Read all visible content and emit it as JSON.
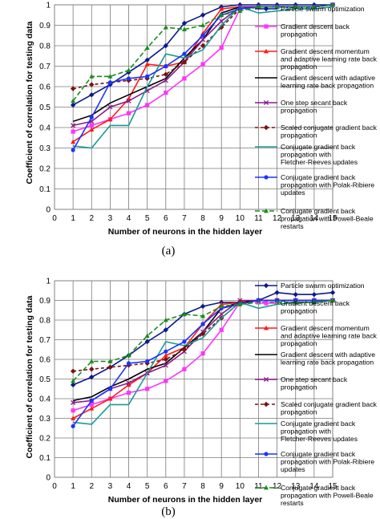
{
  "figure": {
    "panels": [
      {
        "label": "(a)",
        "xlabel": "Number of neurons in the hidden layer",
        "ylabel": "Coefficient of correlation for testing data"
      },
      {
        "label": "(b)",
        "xlabel": "Number of neurons in the hidden layer",
        "ylabel": "Coefficient of correlation for testing data"
      }
    ]
  },
  "chart_data": [
    {
      "type": "line",
      "title": "",
      "panel_label": "(a)",
      "xlabel": "Number of neurons in the hidden layer",
      "ylabel": "Coefficient of correlation for testing data",
      "xlim": [
        0,
        15
      ],
      "ylim": [
        0,
        1
      ],
      "xticks": [
        "0",
        "1",
        "2",
        "3",
        "4",
        "5",
        "6",
        "7",
        "8",
        "9",
        "10",
        "11",
        "12",
        "13",
        "14",
        "15"
      ],
      "yticks": [
        "0",
        "0.1",
        "0.2",
        "0.3",
        "0.4",
        "0.5",
        "0.6",
        "0.7",
        "0.8",
        "0.9",
        "1"
      ],
      "grid": true,
      "legend_position": "right",
      "x": [
        1,
        2,
        3,
        4,
        5,
        6,
        7,
        8,
        9,
        10,
        11,
        12,
        13,
        14,
        15
      ],
      "series": [
        {
          "name": "Particle swarm optimization",
          "color": "#0a1a8c",
          "dash": "",
          "marker": "diamond",
          "values": [
            0.51,
            0.56,
            0.61,
            0.67,
            0.73,
            0.8,
            0.91,
            0.95,
            0.99,
            1.0,
            1.0,
            1.0,
            1.0,
            1.0,
            1.0
          ]
        },
        {
          "name": "Gradient descent back propagation",
          "color": "#ff33ff",
          "dash": "",
          "marker": "square",
          "values": [
            0.38,
            0.41,
            0.44,
            0.47,
            0.51,
            0.57,
            0.64,
            0.71,
            0.79,
            0.98,
            0.99,
            0.99,
            0.99,
            0.99,
            1.0
          ]
        },
        {
          "name": "Gradient descent momentum and adaptive learning rate back propagation",
          "color": "#ff1a1a",
          "dash": "",
          "marker": "triangle",
          "values": [
            0.33,
            0.39,
            0.44,
            0.54,
            0.71,
            0.7,
            0.72,
            0.86,
            0.98,
            0.99,
            0.99,
            0.99,
            0.99,
            0.99,
            1.0
          ]
        },
        {
          "name": "Gradient descent with adaptive learning rate back propagation",
          "color": "#000000",
          "dash": "",
          "marker": "none",
          "values": [
            0.43,
            0.46,
            0.52,
            0.56,
            0.6,
            0.64,
            0.74,
            0.83,
            0.96,
            0.99,
            0.99,
            0.99,
            0.99,
            0.99,
            1.0
          ]
        },
        {
          "name": "One step secant back propagation",
          "color": "#8b1a8b",
          "dash": "",
          "marker": "cross",
          "values": [
            0.41,
            0.43,
            0.5,
            0.53,
            0.58,
            0.63,
            0.72,
            0.83,
            0.92,
            0.99,
            0.99,
            0.99,
            0.99,
            0.99,
            1.0
          ]
        },
        {
          "name": "Scaled conjugate gradient back propagation",
          "color": "#7a1010",
          "dash": "4,3",
          "marker": "diamond",
          "values": [
            0.59,
            0.61,
            0.62,
            0.63,
            0.64,
            0.66,
            0.72,
            0.8,
            0.89,
            0.98,
            0.99,
            0.99,
            0.99,
            0.99,
            1.0
          ]
        },
        {
          "name": "Conjugate gradient back propagation with Fletcher-Reeves updates",
          "color": "#1a9999",
          "dash": "",
          "marker": "none",
          "values": [
            0.31,
            0.3,
            0.41,
            0.41,
            0.6,
            0.76,
            0.74,
            0.78,
            0.9,
            0.99,
            0.96,
            0.97,
            0.98,
            0.98,
            0.99
          ]
        },
        {
          "name": "Conjugate gradient back propagation with Polak-Ribiere updates",
          "color": "#1a33ff",
          "dash": "",
          "marker": "circle",
          "values": [
            0.29,
            0.45,
            0.62,
            0.64,
            0.65,
            0.7,
            0.76,
            0.85,
            0.95,
            0.98,
            0.99,
            0.99,
            0.99,
            0.99,
            1.0
          ]
        },
        {
          "name": "Conjugate gradient back propagation with Powell-Beale restarts",
          "color": "#1a8c1a",
          "dash": "6,3",
          "marker": "triangle",
          "values": [
            0.53,
            0.65,
            0.65,
            0.68,
            0.79,
            0.89,
            0.88,
            0.9,
            0.95,
            0.97,
            0.99,
            0.99,
            0.99,
            0.99,
            1.0
          ]
        }
      ]
    },
    {
      "type": "line",
      "title": "",
      "panel_label": "(b)",
      "xlabel": "Number of neurons in the hidden layer",
      "ylabel": "Coefficient of correlation for testing data",
      "xlim": [
        0,
        15
      ],
      "ylim": [
        0,
        1
      ],
      "xticks": [
        "0",
        "1",
        "2",
        "3",
        "4",
        "5",
        "6",
        "7",
        "8",
        "9",
        "10",
        "11",
        "12",
        "13",
        "14",
        "15"
      ],
      "yticks": [
        "0",
        "0.1",
        "0.2",
        "0.3",
        "0.4",
        "0.5",
        "0.6",
        "0.7",
        "0.8",
        "0.9",
        "1"
      ],
      "grid": true,
      "legend_position": "right",
      "x": [
        1,
        2,
        3,
        4,
        5,
        6,
        7,
        8,
        9,
        10,
        11,
        12,
        13,
        14,
        15
      ],
      "series": [
        {
          "name": "Particle swarm optimization",
          "color": "#0a1a8c",
          "dash": "",
          "marker": "diamond",
          "values": [
            0.47,
            0.51,
            0.56,
            0.62,
            0.69,
            0.75,
            0.83,
            0.87,
            0.89,
            0.89,
            0.9,
            0.94,
            0.93,
            0.93,
            0.94
          ]
        },
        {
          "name": "Gradient descent back propagation",
          "color": "#ff33ff",
          "dash": "",
          "marker": "square",
          "values": [
            0.34,
            0.37,
            0.4,
            0.43,
            0.45,
            0.49,
            0.55,
            0.63,
            0.75,
            0.89,
            0.9,
            0.9,
            0.9,
            0.9,
            0.9
          ]
        },
        {
          "name": "Gradient descent momentum and adaptive learning rate back propagation",
          "color": "#ff1a1a",
          "dash": "",
          "marker": "triangle",
          "values": [
            0.3,
            0.35,
            0.4,
            0.47,
            0.53,
            0.62,
            0.66,
            0.78,
            0.88,
            0.89,
            0.9,
            0.9,
            0.9,
            0.9,
            0.9
          ]
        },
        {
          "name": "Gradient descent with adaptive learning rate back propagation",
          "color": "#000000",
          "dash": "",
          "marker": "none",
          "values": [
            0.39,
            0.41,
            0.46,
            0.5,
            0.55,
            0.58,
            0.66,
            0.74,
            0.86,
            0.89,
            0.9,
            0.9,
            0.9,
            0.9,
            0.9
          ]
        },
        {
          "name": "One step secant back propagation",
          "color": "#8b1a8b",
          "dash": "",
          "marker": "cross",
          "values": [
            0.38,
            0.39,
            0.45,
            0.48,
            0.53,
            0.57,
            0.64,
            0.74,
            0.83,
            0.9,
            0.9,
            0.9,
            0.9,
            0.9,
            0.9
          ]
        },
        {
          "name": "Scaled conjugate gradient back propagation",
          "color": "#7a1010",
          "dash": "4,3",
          "marker": "diamond",
          "values": [
            0.54,
            0.55,
            0.56,
            0.57,
            0.58,
            0.6,
            0.65,
            0.73,
            0.81,
            0.89,
            0.9,
            0.9,
            0.9,
            0.9,
            0.9
          ]
        },
        {
          "name": "Conjugate gradient back propagation with Fletcher-Reeves updates",
          "color": "#1a9999",
          "dash": "",
          "marker": "none",
          "values": [
            0.28,
            0.27,
            0.37,
            0.37,
            0.53,
            0.69,
            0.67,
            0.71,
            0.81,
            0.89,
            0.86,
            0.88,
            0.89,
            0.89,
            0.9
          ]
        },
        {
          "name": "Conjugate gradient back propagation with Polak-Ribiere updates",
          "color": "#1a33ff",
          "dash": "",
          "marker": "circle",
          "values": [
            0.26,
            0.39,
            0.45,
            0.58,
            0.59,
            0.64,
            0.69,
            0.78,
            0.86,
            0.88,
            0.9,
            0.9,
            0.9,
            0.9,
            0.9
          ]
        },
        {
          "name": "Conjugate gradient back propagation with Powell-Beale restarts",
          "color": "#1a8c1a",
          "dash": "6,3",
          "marker": "triangle",
          "values": [
            0.49,
            0.59,
            0.59,
            0.62,
            0.72,
            0.8,
            0.83,
            0.82,
            0.87,
            0.88,
            0.89,
            0.89,
            0.89,
            0.89,
            0.9
          ]
        }
      ]
    }
  ]
}
